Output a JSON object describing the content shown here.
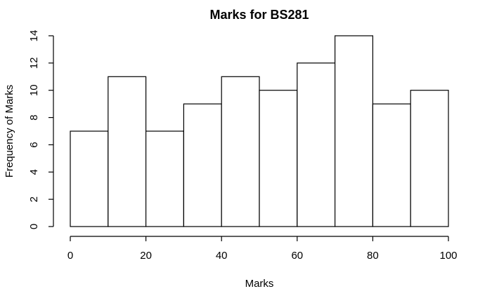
{
  "chart_data": {
    "type": "bar",
    "title": "Marks for BS281",
    "xlabel": "Marks",
    "ylabel": "Frequency of Marks",
    "bins": [
      {
        "start": 0,
        "end": 10,
        "value": 7
      },
      {
        "start": 10,
        "end": 20,
        "value": 11
      },
      {
        "start": 20,
        "end": 30,
        "value": 7
      },
      {
        "start": 30,
        "end": 40,
        "value": 9
      },
      {
        "start": 40,
        "end": 50,
        "value": 11
      },
      {
        "start": 50,
        "end": 60,
        "value": 10
      },
      {
        "start": 60,
        "end": 70,
        "value": 12
      },
      {
        "start": 70,
        "end": 80,
        "value": 14
      },
      {
        "start": 80,
        "end": 90,
        "value": 9
      },
      {
        "start": 90,
        "end": 100,
        "value": 10
      }
    ],
    "xlim": [
      0,
      100
    ],
    "ylim": [
      0,
      14
    ],
    "x_ticks": [
      "0",
      "20",
      "40",
      "60",
      "80",
      "100"
    ],
    "y_ticks": [
      "0",
      "2",
      "4",
      "6",
      "8",
      "10",
      "12",
      "14"
    ],
    "grid": false,
    "colors": {
      "bar_fill": "#ffffff",
      "bar_stroke": "#000000",
      "background": "#ffffff"
    }
  }
}
